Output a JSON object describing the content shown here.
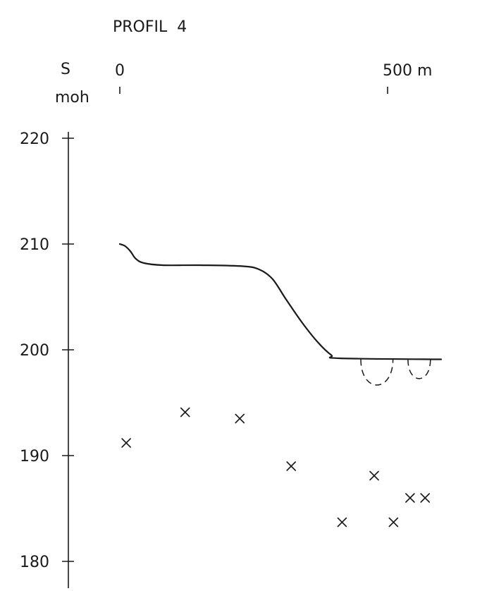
{
  "chart_data": {
    "type": "scatter",
    "title": "PROFIL  4",
    "ylabel_top": "S",
    "ylabel_unit": "moh",
    "ylim": [
      180,
      220
    ],
    "y_ticks": [
      220,
      210,
      200,
      190,
      180
    ],
    "x_ticks": [
      {
        "value": 0,
        "label": "0"
      },
      {
        "value": 500,
        "label": "500 m"
      }
    ],
    "grid": false,
    "surface_profile": [
      [
        0,
        210.0
      ],
      [
        10,
        209.8
      ],
      [
        20,
        209.3
      ],
      [
        30,
        208.6
      ],
      [
        45,
        208.2
      ],
      [
        80,
        208.0
      ],
      [
        150,
        208.0
      ],
      [
        230,
        207.9
      ],
      [
        260,
        207.6
      ],
      [
        285,
        206.7
      ],
      [
        310,
        204.8
      ],
      [
        340,
        202.6
      ],
      [
        370,
        200.7
      ],
      [
        395,
        199.5
      ],
      [
        410,
        199.2
      ],
      [
        600,
        199.1
      ]
    ],
    "depressions": [
      {
        "x_start": 450,
        "x_end": 510,
        "depth_bottom": 196.7
      },
      {
        "x_start": 538,
        "x_end": 580,
        "depth_bottom": 197.3
      }
    ],
    "points": [
      {
        "x": 12,
        "y": 191.2
      },
      {
        "x": 122,
        "y": 194.1
      },
      {
        "x": 224,
        "y": 193.5
      },
      {
        "x": 320,
        "y": 189.0
      },
      {
        "x": 415,
        "y": 183.7
      },
      {
        "x": 475,
        "y": 188.1
      },
      {
        "x": 511,
        "y": 183.7
      },
      {
        "x": 542,
        "y": 186.0
      },
      {
        "x": 570,
        "y": 186.0
      }
    ]
  }
}
